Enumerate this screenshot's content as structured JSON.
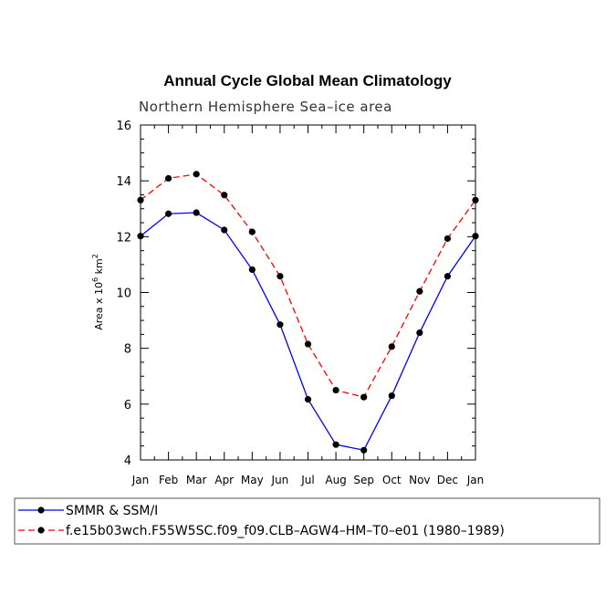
{
  "chart_data": {
    "type": "line",
    "title": "Annual Cycle Global Mean Climatology",
    "subtitle": "Northern Hemisphere Sea–ice area",
    "ylabel": "Area x 10",
    "ylabel_exp": "6",
    "ylabel_unit": "km",
    "ylabel_unit_exp": "2",
    "ylim": [
      4,
      16
    ],
    "yticks": [
      "4",
      "6",
      "8",
      "10",
      "12",
      "14",
      "16"
    ],
    "categories": [
      "Jan",
      "Feb",
      "Mar",
      "Apr",
      "May",
      "Jun",
      "Jul",
      "Aug",
      "Sep",
      "Oct",
      "Nov",
      "Dec",
      "Jan"
    ],
    "grid": false,
    "legend_position": "bottom",
    "series": [
      {
        "name": "SMMR & SSM/I",
        "color": "#0000ff",
        "dash": "solid",
        "values": [
          12.02,
          12.82,
          12.86,
          12.24,
          10.82,
          8.85,
          6.17,
          4.55,
          4.35,
          6.3,
          8.56,
          10.58,
          12.02
        ]
      },
      {
        "name": "f.e15b03wch.F55W5SC.f09_f09.CLB–AGW4–HM–T0–e01 (1980–1989)",
        "color": "#ff0000",
        "dash": "dashed",
        "values": [
          13.31,
          14.09,
          14.24,
          13.49,
          12.17,
          10.58,
          8.15,
          6.5,
          6.25,
          8.06,
          10.04,
          11.93,
          13.31
        ]
      }
    ]
  }
}
